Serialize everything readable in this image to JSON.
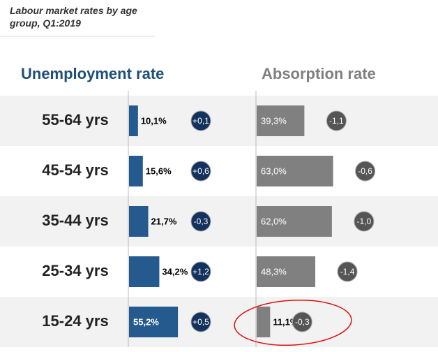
{
  "title": "Labour market rates by age group, Q1:2019",
  "chart_data": [
    {
      "type": "bar",
      "orientation": "horizontal",
      "title": "Unemployment rate",
      "title_color": "#1f4e79",
      "categories": [
        "55-64 yrs",
        "45-54 yrs",
        "35-44 yrs",
        "25-34 yrs",
        "15-24 yrs"
      ],
      "values": [
        10.1,
        15.6,
        21.7,
        34.2,
        55.2
      ],
      "value_labels": [
        "10,1%",
        "15,6%",
        "21,7%",
        "34,2%",
        "55,2%"
      ],
      "changes": [
        0.1,
        0.6,
        -0.3,
        1.2,
        0.5
      ],
      "change_labels": [
        "+0,1",
        "+0,6",
        "-0,3",
        "+1,2",
        "+0,5"
      ],
      "color": "#255a8f",
      "change_color": "#13325e"
    },
    {
      "type": "bar",
      "orientation": "horizontal",
      "title": "Absorption rate",
      "title_color": "#7f7f7f",
      "values": [
        39.3,
        63.0,
        62.0,
        48.3,
        11.1
      ],
      "value_labels": [
        "39,3%",
        "63,0%",
        "62,0%",
        "48,3%",
        "11,1%"
      ],
      "changes": [
        -1.1,
        -0.6,
        -1.0,
        -1.4,
        -0.3
      ],
      "change_labels": [
        "-1,1",
        "-0,6",
        "-1,0",
        "-1,4",
        "-0,3"
      ],
      "color": "#808080",
      "change_color": "#555555"
    }
  ]
}
